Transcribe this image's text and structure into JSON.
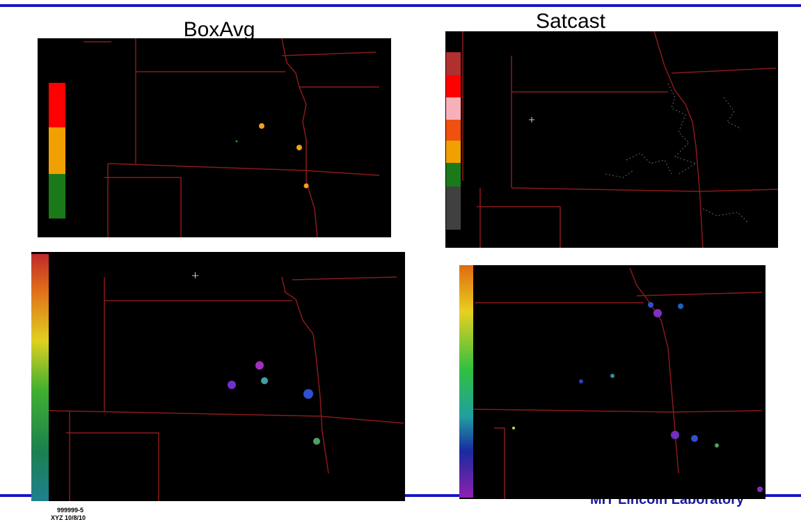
{
  "titles": {
    "left": "BoxAvg",
    "right": "Satcast"
  },
  "footer": {
    "code": "999999-5",
    "date": "XYZ 10/8/10",
    "lab": "MIT Lincoln Laboratory"
  }
}
